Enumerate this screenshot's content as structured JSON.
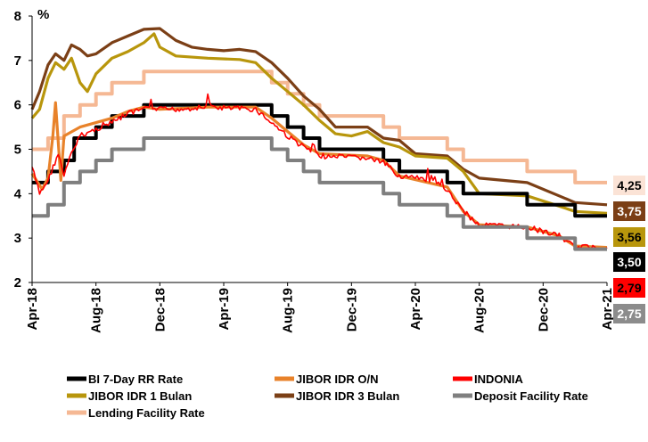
{
  "chart_data": {
    "type": "line",
    "ylabel": "%",
    "xlabel": "",
    "ylim": [
      2,
      8
    ],
    "yticks": [
      "2",
      "3",
      "4",
      "5",
      "6",
      "7",
      "8"
    ],
    "xticks": [
      "Apr-18",
      "Aug-18",
      "Dec-18",
      "Apr-19",
      "Aug-19",
      "Dec-19",
      "Apr-20",
      "Aug-20",
      "Dec-20",
      "Apr-21"
    ],
    "xlim": [
      "2018-04",
      "2021-04"
    ],
    "grid": false,
    "legend_position": "bottom",
    "series": [
      {
        "name": "Lending Facility Rate",
        "color": "#f5b894",
        "step": true,
        "points": [
          [
            "2018-04",
            5.0
          ],
          [
            "2018-05",
            5.25
          ],
          [
            "2018-06",
            5.75
          ],
          [
            "2018-07",
            6.0
          ],
          [
            "2018-08",
            6.25
          ],
          [
            "2018-09",
            6.5
          ],
          [
            "2018-11",
            6.75
          ],
          [
            "2019-07",
            6.5
          ],
          [
            "2019-08",
            6.25
          ],
          [
            "2019-09",
            6.0
          ],
          [
            "2019-10",
            5.75
          ],
          [
            "2020-02",
            5.5
          ],
          [
            "2020-03",
            5.25
          ],
          [
            "2020-06",
            5.0
          ],
          [
            "2020-07",
            4.75
          ],
          [
            "2020-11",
            4.5
          ],
          [
            "2021-02",
            4.25
          ],
          [
            "2021-04",
            4.25
          ]
        ]
      },
      {
        "name": "JIBOR IDR 3 Bulan",
        "color": "#7b3f16",
        "step": false,
        "points": [
          [
            "2018-04",
            5.9
          ],
          [
            "2018-04-15",
            6.3
          ],
          [
            "2018-05",
            6.9
          ],
          [
            "2018-05-15",
            7.15
          ],
          [
            "2018-06",
            7.0
          ],
          [
            "2018-06-15",
            7.35
          ],
          [
            "2018-07",
            7.25
          ],
          [
            "2018-07-15",
            7.1
          ],
          [
            "2018-08",
            7.15
          ],
          [
            "2018-09",
            7.4
          ],
          [
            "2018-10",
            7.55
          ],
          [
            "2018-11",
            7.7
          ],
          [
            "2018-12",
            7.72
          ],
          [
            "2019-01",
            7.45
          ],
          [
            "2019-02",
            7.3
          ],
          [
            "2019-03",
            7.25
          ],
          [
            "2019-04",
            7.22
          ],
          [
            "2019-05",
            7.25
          ],
          [
            "2019-06",
            7.2
          ],
          [
            "2019-07",
            6.95
          ],
          [
            "2019-08",
            6.6
          ],
          [
            "2019-09",
            6.2
          ],
          [
            "2019-10",
            5.9
          ],
          [
            "2019-11",
            5.5
          ],
          [
            "2020-01",
            5.5
          ],
          [
            "2020-02",
            5.25
          ],
          [
            "2020-03",
            5.2
          ],
          [
            "2020-04",
            4.9
          ],
          [
            "2020-06",
            4.85
          ],
          [
            "2020-07",
            4.55
          ],
          [
            "2020-08",
            4.35
          ],
          [
            "2020-11",
            4.25
          ],
          [
            "2021-01",
            3.95
          ],
          [
            "2021-02",
            3.8
          ],
          [
            "2021-04",
            3.75
          ]
        ]
      },
      {
        "name": "JIBOR IDR 1 Bulan",
        "color": "#b8960c",
        "step": false,
        "points": [
          [
            "2018-04",
            5.7
          ],
          [
            "2018-04-15",
            5.9
          ],
          [
            "2018-05",
            6.6
          ],
          [
            "2018-05-15",
            6.95
          ],
          [
            "2018-06",
            6.8
          ],
          [
            "2018-06-15",
            7.05
          ],
          [
            "2018-07",
            6.5
          ],
          [
            "2018-07-15",
            6.3
          ],
          [
            "2018-08",
            6.7
          ],
          [
            "2018-09",
            7.05
          ],
          [
            "2018-10",
            7.2
          ],
          [
            "2018-11",
            7.4
          ],
          [
            "2018-11-20",
            7.6
          ],
          [
            "2018-12",
            7.3
          ],
          [
            "2019-01",
            7.1
          ],
          [
            "2019-03",
            7.05
          ],
          [
            "2019-05",
            7.02
          ],
          [
            "2019-06",
            6.95
          ],
          [
            "2019-07",
            6.6
          ],
          [
            "2019-08",
            6.3
          ],
          [
            "2019-09",
            6.0
          ],
          [
            "2019-10",
            5.65
          ],
          [
            "2019-11",
            5.35
          ],
          [
            "2019-12",
            5.3
          ],
          [
            "2020-01",
            5.4
          ],
          [
            "2020-02",
            5.15
          ],
          [
            "2020-03",
            5.05
          ],
          [
            "2020-04",
            4.85
          ],
          [
            "2020-06",
            4.8
          ],
          [
            "2020-07",
            4.5
          ],
          [
            "2020-08",
            4.0
          ],
          [
            "2020-11",
            3.95
          ],
          [
            "2021-01",
            3.72
          ],
          [
            "2021-02",
            3.6
          ],
          [
            "2021-04",
            3.56
          ]
        ]
      },
      {
        "name": "BI 7-Day RR Rate",
        "color": "#000000",
        "step": true,
        "points": [
          [
            "2018-04",
            4.25
          ],
          [
            "2018-05",
            4.5
          ],
          [
            "2018-06",
            4.75
          ],
          [
            "2018-06-20",
            5.25
          ],
          [
            "2018-08",
            5.5
          ],
          [
            "2018-09",
            5.75
          ],
          [
            "2018-11",
            6.0
          ],
          [
            "2019-07",
            5.75
          ],
          [
            "2019-08",
            5.5
          ],
          [
            "2019-09",
            5.25
          ],
          [
            "2019-10",
            5.0
          ],
          [
            "2020-02",
            4.75
          ],
          [
            "2020-03",
            4.5
          ],
          [
            "2020-06",
            4.25
          ],
          [
            "2020-07",
            4.0
          ],
          [
            "2020-11",
            3.75
          ],
          [
            "2021-02",
            3.5
          ],
          [
            "2021-04",
            3.5
          ]
        ]
      },
      {
        "name": "JIBOR IDR O/N",
        "color": "#e8822a",
        "step": false,
        "points": [
          [
            "2018-04",
            4.45
          ],
          [
            "2018-04-20",
            4.1
          ],
          [
            "2018-05",
            4.35
          ],
          [
            "2018-05-10",
            5.3
          ],
          [
            "2018-05-15",
            6.05
          ],
          [
            "2018-05-25",
            4.3
          ],
          [
            "2018-06",
            5.3
          ],
          [
            "2018-07",
            5.5
          ],
          [
            "2018-08",
            5.6
          ],
          [
            "2018-09",
            5.7
          ],
          [
            "2018-10",
            5.85
          ],
          [
            "2018-11",
            5.95
          ],
          [
            "2018-12",
            5.9
          ],
          [
            "2019-03",
            5.95
          ],
          [
            "2019-06",
            5.95
          ],
          [
            "2019-07",
            5.7
          ],
          [
            "2019-08",
            5.4
          ],
          [
            "2019-09",
            5.1
          ],
          [
            "2019-10",
            4.9
          ],
          [
            "2020-01",
            4.85
          ],
          [
            "2020-02",
            4.75
          ],
          [
            "2020-03",
            4.4
          ],
          [
            "2020-06",
            4.15
          ],
          [
            "2020-07",
            3.6
          ],
          [
            "2020-08",
            3.3
          ],
          [
            "2020-11",
            3.25
          ],
          [
            "2021-01",
            3.05
          ],
          [
            "2021-02",
            2.82
          ],
          [
            "2021-04",
            2.79
          ]
        ]
      },
      {
        "name": "INDONIA",
        "color": "#ff0000",
        "step": false,
        "noisy": true,
        "points": [
          [
            "2018-04",
            4.6
          ],
          [
            "2018-04-15",
            4.0
          ],
          [
            "2018-05",
            4.3
          ],
          [
            "2018-05-20",
            4.9
          ],
          [
            "2018-06",
            4.4
          ],
          [
            "2018-06-15",
            4.9
          ],
          [
            "2018-07",
            5.3
          ],
          [
            "2018-08",
            5.45
          ],
          [
            "2018-09",
            5.6
          ],
          [
            "2018-10",
            5.8
          ],
          [
            "2018-11",
            5.9
          ],
          [
            "2019-01",
            5.9
          ],
          [
            "2019-03",
            5.95
          ],
          [
            "2019-06",
            5.9
          ],
          [
            "2019-07",
            5.6
          ],
          [
            "2019-08",
            5.3
          ],
          [
            "2019-09",
            5.05
          ],
          [
            "2019-10",
            4.85
          ],
          [
            "2020-01",
            4.8
          ],
          [
            "2020-02",
            4.7
          ],
          [
            "2020-03",
            4.4
          ],
          [
            "2020-05",
            4.3
          ],
          [
            "2020-06",
            4.1
          ],
          [
            "2020-07",
            3.6
          ],
          [
            "2020-08",
            3.3
          ],
          [
            "2020-11",
            3.25
          ],
          [
            "2021-01",
            3.05
          ],
          [
            "2021-02",
            2.8
          ],
          [
            "2021-04",
            2.79
          ]
        ]
      },
      {
        "name": "Deposit Facility Rate",
        "color": "#7f7f7f",
        "step": true,
        "points": [
          [
            "2018-04",
            3.5
          ],
          [
            "2018-05",
            3.75
          ],
          [
            "2018-06",
            4.25
          ],
          [
            "2018-07",
            4.5
          ],
          [
            "2018-08",
            4.75
          ],
          [
            "2018-09",
            5.0
          ],
          [
            "2018-11",
            5.25
          ],
          [
            "2019-07",
            5.0
          ],
          [
            "2019-08",
            4.75
          ],
          [
            "2019-09",
            4.5
          ],
          [
            "2019-10",
            4.25
          ],
          [
            "2020-02",
            4.0
          ],
          [
            "2020-03",
            3.75
          ],
          [
            "2020-06",
            3.5
          ],
          [
            "2020-07",
            3.25
          ],
          [
            "2020-11",
            3.0
          ],
          [
            "2021-02",
            2.75
          ],
          [
            "2021-04",
            2.75
          ]
        ]
      }
    ],
    "end_labels": [
      {
        "text": "4,25",
        "value": 4.25,
        "bg": "#fbe3d6",
        "fg": "#000000"
      },
      {
        "text": "3,75",
        "value": 3.75,
        "bg": "#7b3f16",
        "fg": "#ffffff"
      },
      {
        "text": "3,56",
        "value": 3.56,
        "bg": "#b8960c",
        "fg": "#000000"
      },
      {
        "text": "3,50",
        "value": 3.5,
        "bg": "#000000",
        "fg": "#ffffff"
      },
      {
        "text": "2,79",
        "value": 2.79,
        "bg": "#ff0000",
        "fg": "#000000"
      },
      {
        "text": "2,75",
        "value": 2.75,
        "bg": "#8c8c8c",
        "fg": "#ffffff"
      }
    ],
    "legend": [
      {
        "label": "BI 7-Day RR Rate",
        "color": "#000000"
      },
      {
        "label": "JIBOR IDR O/N",
        "color": "#e8822a"
      },
      {
        "label": "INDONIA",
        "color": "#ff0000"
      },
      {
        "label": "JIBOR IDR 1 Bulan",
        "color": "#b8960c"
      },
      {
        "label": "JIBOR IDR 3 Bulan",
        "color": "#7b3f16"
      },
      {
        "label": "Deposit Facility Rate",
        "color": "#7f7f7f"
      },
      {
        "label": "Lending Facility Rate",
        "color": "#f5b894"
      }
    ]
  }
}
